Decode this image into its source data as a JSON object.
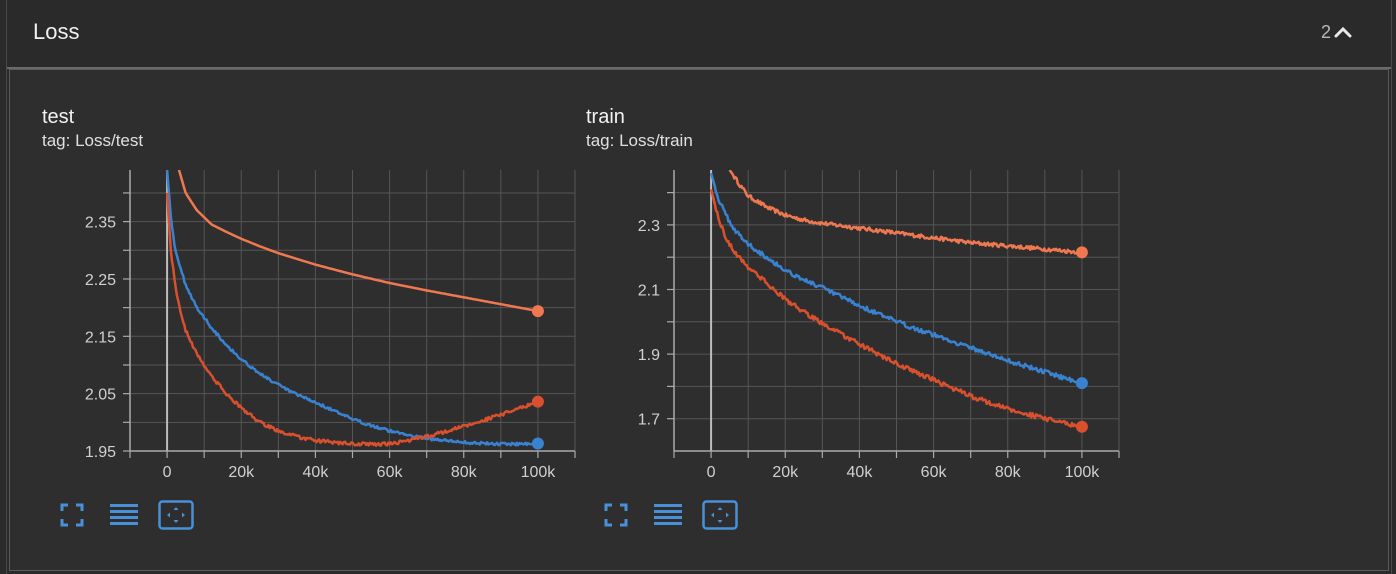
{
  "header": {
    "title": "Loss",
    "count": "2"
  },
  "icons": {
    "collapse": "chevron-up-icon",
    "fullscreen": "fullscreen-icon",
    "legend": "list-icon",
    "fit": "fit-domain-icon"
  },
  "colors": {
    "orange": "#f07850",
    "red": "#d9502e",
    "blue": "#3a82d0",
    "accent": "#4a90d9"
  },
  "chart_data": [
    {
      "type": "line",
      "title": "test",
      "subtitle": "tag: Loss/test",
      "xticks": [
        "0",
        "20k",
        "40k",
        "60k",
        "80k",
        "100k"
      ],
      "yticks": [
        "1.95",
        "2.05",
        "2.15",
        "2.25",
        "2.35"
      ],
      "xlim": [
        -10000,
        110000
      ],
      "ylim": [
        1.95,
        2.44
      ],
      "grid": true,
      "series": [
        {
          "color": "#f07850",
          "x": [
            3000,
            5000,
            8000,
            12000,
            16000,
            20000,
            25000,
            30000,
            40000,
            50000,
            60000,
            70000,
            80000,
            90000,
            100000
          ],
          "y": [
            2.445,
            2.4,
            2.37,
            2.345,
            2.332,
            2.32,
            2.307,
            2.295,
            2.275,
            2.258,
            2.243,
            2.23,
            2.218,
            2.206,
            2.194
          ],
          "noise": 0
        },
        {
          "color": "#3a82d0",
          "x": [
            0,
            1000,
            2000,
            3000,
            5000,
            8000,
            12000,
            16000,
            20000,
            25000,
            30000,
            35000,
            40000,
            50000,
            60000,
            70000,
            80000,
            90000,
            100000
          ],
          "y": [
            2.44,
            2.36,
            2.31,
            2.28,
            2.24,
            2.2,
            2.165,
            2.135,
            2.11,
            2.085,
            2.065,
            2.048,
            2.035,
            2.005,
            1.985,
            1.972,
            1.965,
            1.962,
            1.963
          ],
          "noise": 0.0025
        },
        {
          "color": "#d9502e",
          "x": [
            0,
            1000,
            2000,
            3000,
            5000,
            8000,
            12000,
            16000,
            20000,
            25000,
            30000,
            35000,
            40000,
            50000,
            60000,
            70000,
            80000,
            90000,
            100000
          ],
          "y": [
            2.4,
            2.3,
            2.25,
            2.21,
            2.16,
            2.12,
            2.08,
            2.05,
            2.025,
            2.0,
            1.985,
            1.975,
            1.968,
            1.962,
            1.962,
            1.975,
            1.993,
            2.013,
            2.036
          ],
          "noise": 0.003
        }
      ]
    },
    {
      "type": "line",
      "title": "train",
      "subtitle": "tag: Loss/train",
      "xticks": [
        "0",
        "20k",
        "40k",
        "60k",
        "80k",
        "100k"
      ],
      "yticks": [
        "1.7",
        "1.9",
        "2.1",
        "2.3"
      ],
      "xlim": [
        -10000,
        110000
      ],
      "ylim": [
        1.6,
        2.47
      ],
      "grid": true,
      "series": [
        {
          "color": "#f07850",
          "x": [
            5000,
            8000,
            10000,
            15000,
            20000,
            25000,
            30000,
            40000,
            50000,
            60000,
            70000,
            80000,
            90000,
            100000
          ],
          "y": [
            2.47,
            2.42,
            2.39,
            2.355,
            2.33,
            2.315,
            2.305,
            2.29,
            2.275,
            2.26,
            2.245,
            2.235,
            2.225,
            2.215
          ],
          "noise": 0.006
        },
        {
          "color": "#3a82d0",
          "x": [
            0,
            2000,
            4000,
            6000,
            10000,
            15000,
            20000,
            25000,
            30000,
            40000,
            50000,
            60000,
            70000,
            80000,
            90000,
            100000
          ],
          "y": [
            2.46,
            2.38,
            2.33,
            2.29,
            2.24,
            2.2,
            2.16,
            2.13,
            2.105,
            2.05,
            2.0,
            1.96,
            1.92,
            1.88,
            1.845,
            1.81
          ],
          "noise": 0.007
        },
        {
          "color": "#d9502e",
          "x": [
            0,
            2000,
            4000,
            6000,
            10000,
            15000,
            20000,
            25000,
            30000,
            40000,
            50000,
            60000,
            70000,
            80000,
            90000,
            100000
          ],
          "y": [
            2.41,
            2.32,
            2.26,
            2.22,
            2.17,
            2.12,
            2.07,
            2.03,
            1.995,
            1.93,
            1.87,
            1.82,
            1.77,
            1.73,
            1.7,
            1.675
          ],
          "noise": 0.007
        }
      ]
    }
  ]
}
